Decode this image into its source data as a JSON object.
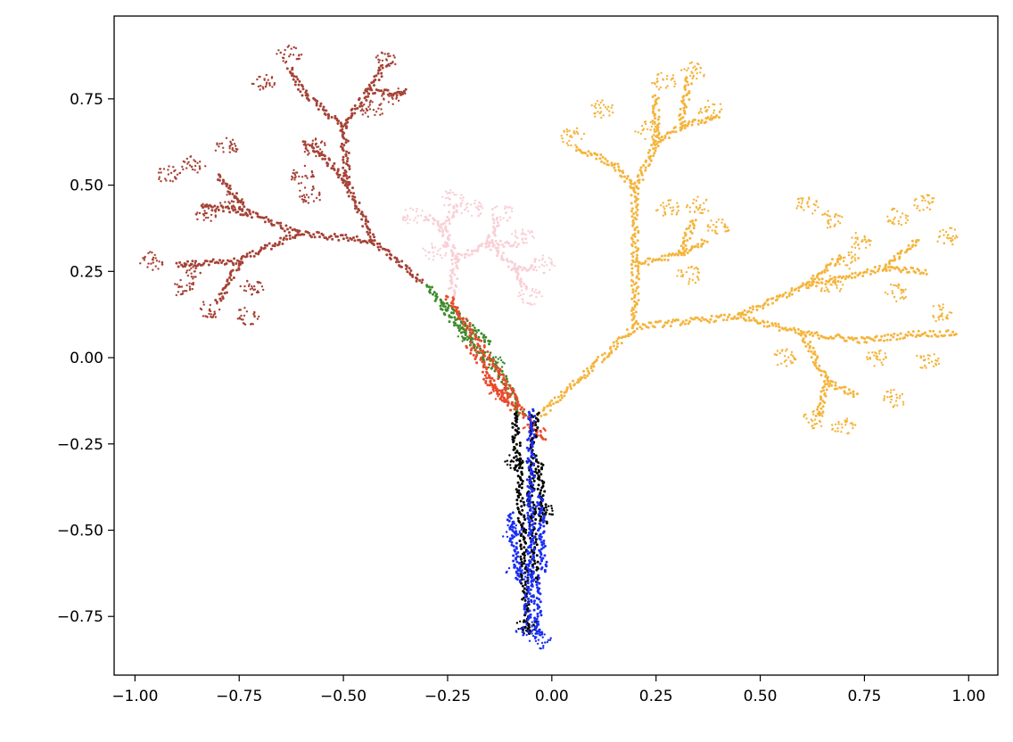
{
  "chart_data": {
    "type": "scatter",
    "title": "",
    "xlabel": "",
    "ylabel": "",
    "xlim": [
      -1.05,
      1.07
    ],
    "ylim": [
      -0.92,
      0.99
    ],
    "legend": "none",
    "grid": false,
    "xticks": [
      {
        "value": -1.0,
        "label": "−1.00"
      },
      {
        "value": -0.75,
        "label": "−0.75"
      },
      {
        "value": -0.5,
        "label": "−0.50"
      },
      {
        "value": -0.25,
        "label": "−0.25"
      },
      {
        "value": 0.0,
        "label": "0.00"
      },
      {
        "value": 0.25,
        "label": "0.25"
      },
      {
        "value": 0.5,
        "label": "0.50"
      },
      {
        "value": 0.75,
        "label": "0.75"
      },
      {
        "value": 1.0,
        "label": "1.00"
      }
    ],
    "yticks": [
      {
        "value": -0.75,
        "label": "−0.75"
      },
      {
        "value": -0.5,
        "label": "−0.50"
      },
      {
        "value": -0.25,
        "label": "−0.25"
      },
      {
        "value": 0.0,
        "label": "0.00"
      },
      {
        "value": 0.25,
        "label": "0.25"
      },
      {
        "value": 0.5,
        "label": "0.50"
      },
      {
        "value": 0.75,
        "label": "0.75"
      }
    ],
    "series": [
      {
        "color": "#a64236",
        "segments": [
          [
            [
              -0.31,
              0.22
            ],
            [
              -0.43,
              0.34
            ]
          ],
          [
            [
              -0.43,
              0.34
            ],
            [
              -0.49,
              0.5
            ]
          ],
          [
            [
              -0.49,
              0.5
            ],
            [
              -0.5,
              0.67
            ]
          ],
          [
            [
              -0.5,
              0.67
            ],
            [
              -0.59,
              0.76
            ]
          ],
          [
            [
              -0.59,
              0.76
            ],
            [
              -0.63,
              0.84
            ]
          ],
          [
            [
              -0.5,
              0.67
            ],
            [
              -0.44,
              0.77
            ]
          ],
          [
            [
              -0.44,
              0.77
            ],
            [
              -0.4,
              0.85
            ]
          ],
          [
            [
              -0.44,
              0.77
            ],
            [
              -0.35,
              0.77
            ]
          ],
          [
            [
              -0.49,
              0.5
            ],
            [
              -0.55,
              0.59
            ]
          ],
          [
            [
              -0.55,
              0.59
            ],
            [
              -0.6,
              0.62
            ]
          ],
          [
            [
              -0.43,
              0.34
            ],
            [
              -0.61,
              0.36
            ]
          ],
          [
            [
              -0.61,
              0.36
            ],
            [
              -0.73,
              0.42
            ]
          ],
          [
            [
              -0.73,
              0.42
            ],
            [
              -0.8,
              0.53
            ]
          ],
          [
            [
              -0.73,
              0.42
            ],
            [
              -0.84,
              0.44
            ]
          ],
          [
            [
              -0.61,
              0.36
            ],
            [
              -0.75,
              0.28
            ]
          ],
          [
            [
              -0.75,
              0.28
            ],
            [
              -0.9,
              0.27
            ]
          ],
          [
            [
              -0.75,
              0.28
            ],
            [
              -0.8,
              0.16
            ]
          ]
        ],
        "blobs": [
          [
            -0.63,
            0.88
          ],
          [
            -0.69,
            0.8
          ],
          [
            -0.43,
            0.72
          ],
          [
            -0.38,
            0.76
          ],
          [
            -0.4,
            0.86
          ],
          [
            -0.57,
            0.61
          ],
          [
            -0.6,
            0.53
          ],
          [
            -0.58,
            0.47
          ],
          [
            -0.92,
            0.53
          ],
          [
            -0.86,
            0.56
          ],
          [
            -0.78,
            0.61
          ],
          [
            -0.83,
            0.42
          ],
          [
            -0.77,
            0.45
          ],
          [
            -0.96,
            0.28
          ],
          [
            -0.88,
            0.2
          ],
          [
            -0.82,
            0.14
          ],
          [
            -0.73,
            0.12
          ],
          [
            -0.86,
            0.25
          ],
          [
            -0.72,
            0.2
          ]
        ]
      },
      {
        "color": "#f8d0d6",
        "segments": [
          [
            [
              -0.24,
              0.18
            ],
            [
              -0.23,
              0.29
            ]
          ],
          [
            [
              -0.23,
              0.29
            ],
            [
              -0.26,
              0.37
            ]
          ],
          [
            [
              -0.26,
              0.37
            ],
            [
              -0.3,
              0.41
            ]
          ],
          [
            [
              -0.26,
              0.37
            ],
            [
              -0.23,
              0.44
            ]
          ],
          [
            [
              -0.23,
              0.29
            ],
            [
              -0.15,
              0.33
            ]
          ],
          [
            [
              -0.15,
              0.33
            ],
            [
              -0.13,
              0.4
            ]
          ],
          [
            [
              -0.15,
              0.33
            ],
            [
              -0.08,
              0.33
            ]
          ],
          [
            [
              -0.15,
              0.33
            ],
            [
              -0.09,
              0.26
            ]
          ],
          [
            [
              -0.09,
              0.26
            ],
            [
              -0.04,
              0.26
            ]
          ],
          [
            [
              -0.09,
              0.26
            ],
            [
              -0.06,
              0.2
            ]
          ]
        ],
        "blobs": [
          [
            -0.33,
            0.41
          ],
          [
            -0.24,
            0.46
          ],
          [
            -0.19,
            0.43
          ],
          [
            -0.12,
            0.42
          ],
          [
            -0.07,
            0.35
          ],
          [
            -0.02,
            0.27
          ],
          [
            -0.05,
            0.18
          ],
          [
            -0.28,
            0.31
          ]
        ]
      },
      {
        "color": "#f5b43c",
        "segments": [
          [
            [
              -0.03,
              -0.17
            ],
            [
              0.13,
              0.01
            ]
          ],
          [
            [
              0.13,
              0.01
            ],
            [
              0.2,
              0.09
            ]
          ],
          [
            [
              0.2,
              0.09
            ],
            [
              0.2,
              0.27
            ]
          ],
          [
            [
              0.2,
              0.27
            ],
            [
              0.2,
              0.49
            ]
          ],
          [
            [
              0.2,
              0.49
            ],
            [
              0.15,
              0.56
            ]
          ],
          [
            [
              0.15,
              0.56
            ],
            [
              0.06,
              0.61
            ]
          ],
          [
            [
              0.2,
              0.49
            ],
            [
              0.25,
              0.62
            ]
          ],
          [
            [
              0.25,
              0.62
            ],
            [
              0.25,
              0.76
            ]
          ],
          [
            [
              0.25,
              0.62
            ],
            [
              0.31,
              0.67
            ]
          ],
          [
            [
              0.31,
              0.67
            ],
            [
              0.33,
              0.81
            ]
          ],
          [
            [
              0.31,
              0.67
            ],
            [
              0.4,
              0.7
            ]
          ],
          [
            [
              0.2,
              0.27
            ],
            [
              0.31,
              0.3
            ]
          ],
          [
            [
              0.31,
              0.3
            ],
            [
              0.34,
              0.4
            ]
          ],
          [
            [
              0.31,
              0.3
            ],
            [
              0.37,
              0.34
            ]
          ],
          [
            [
              0.2,
              0.09
            ],
            [
              0.45,
              0.12
            ]
          ],
          [
            [
              0.45,
              0.12
            ],
            [
              0.61,
              0.21
            ]
          ],
          [
            [
              0.61,
              0.21
            ],
            [
              0.69,
              0.29
            ]
          ],
          [
            [
              0.61,
              0.21
            ],
            [
              0.8,
              0.26
            ]
          ],
          [
            [
              0.8,
              0.26
            ],
            [
              0.88,
              0.34
            ]
          ],
          [
            [
              0.8,
              0.26
            ],
            [
              0.9,
              0.25
            ]
          ],
          [
            [
              0.45,
              0.12
            ],
            [
              0.6,
              0.07
            ]
          ],
          [
            [
              0.6,
              0.07
            ],
            [
              0.75,
              0.05
            ]
          ],
          [
            [
              0.75,
              0.05
            ],
            [
              0.88,
              0.07
            ]
          ],
          [
            [
              0.88,
              0.07
            ],
            [
              0.97,
              0.07
            ]
          ],
          [
            [
              0.6,
              0.07
            ],
            [
              0.66,
              -0.07
            ]
          ],
          [
            [
              0.66,
              -0.07
            ],
            [
              0.73,
              -0.11
            ]
          ],
          [
            [
              0.66,
              -0.07
            ],
            [
              0.64,
              -0.17
            ]
          ]
        ],
        "blobs": [
          [
            0.05,
            0.64
          ],
          [
            0.12,
            0.72
          ],
          [
            0.27,
            0.8
          ],
          [
            0.34,
            0.83
          ],
          [
            0.38,
            0.72
          ],
          [
            0.23,
            0.66
          ],
          [
            0.28,
            0.43
          ],
          [
            0.35,
            0.44
          ],
          [
            0.4,
            0.38
          ],
          [
            0.33,
            0.24
          ],
          [
            0.61,
            0.44
          ],
          [
            0.67,
            0.4
          ],
          [
            0.71,
            0.28
          ],
          [
            0.67,
            0.21
          ],
          [
            0.74,
            0.34
          ],
          [
            0.83,
            0.41
          ],
          [
            0.89,
            0.45
          ],
          [
            0.95,
            0.35
          ],
          [
            0.83,
            0.19
          ],
          [
            0.93,
            0.13
          ],
          [
            0.9,
            -0.01
          ],
          [
            0.78,
            0.0
          ],
          [
            0.63,
            -0.18
          ],
          [
            0.7,
            -0.2
          ],
          [
            0.82,
            -0.12
          ],
          [
            0.56,
            0.0
          ]
        ]
      },
      {
        "color": "#3d8a2a",
        "segments": [
          [
            [
              -0.3,
              0.21
            ],
            [
              -0.22,
              0.08
            ]
          ],
          [
            [
              -0.22,
              0.08
            ],
            [
              -0.12,
              -0.05
            ]
          ],
          [
            [
              -0.26,
              0.16
            ],
            [
              -0.15,
              0.04
            ]
          ],
          [
            [
              -0.12,
              -0.05
            ],
            [
              -0.07,
              -0.17
            ]
          ]
        ],
        "blobs": [
          [
            -0.2,
            0.07
          ],
          [
            -0.14,
            -0.01
          ]
        ]
      },
      {
        "color": "#e84a2a",
        "segments": [
          [
            [
              -0.25,
              0.18
            ],
            [
              -0.13,
              -0.04
            ]
          ],
          [
            [
              -0.13,
              -0.04
            ],
            [
              -0.08,
              -0.14
            ]
          ],
          [
            [
              -0.2,
              0.04
            ],
            [
              -0.11,
              -0.13
            ]
          ],
          [
            [
              -0.08,
              -0.14
            ],
            [
              -0.02,
              -0.24
            ]
          ],
          [
            [
              -0.16,
              -0.06
            ],
            [
              -0.09,
              -0.15
            ]
          ]
        ],
        "blobs": [
          [
            -0.12,
            -0.1
          ],
          [
            -0.04,
            -0.21
          ]
        ]
      },
      {
        "color": "#000000",
        "segments": [
          [
            [
              -0.09,
              -0.16
            ],
            [
              -0.08,
              -0.32
            ]
          ],
          [
            [
              -0.08,
              -0.32
            ],
            [
              -0.07,
              -0.5
            ]
          ],
          [
            [
              -0.07,
              -0.5
            ],
            [
              -0.06,
              -0.8
            ]
          ],
          [
            [
              -0.04,
              -0.16
            ],
            [
              -0.05,
              -0.4
            ]
          ],
          [
            [
              -0.05,
              -0.4
            ],
            [
              -0.04,
              -0.65
            ]
          ],
          [
            [
              -0.03,
              -0.3
            ],
            [
              -0.02,
              -0.48
            ]
          ]
        ],
        "blobs": [
          [
            -0.09,
            -0.3
          ],
          [
            -0.02,
            -0.45
          ],
          [
            -0.06,
            -0.78
          ]
        ]
      },
      {
        "color": "#1a2ef5",
        "segments": [
          [
            [
              -0.05,
              -0.15
            ],
            [
              -0.05,
              -0.55
            ]
          ],
          [
            [
              -0.05,
              -0.55
            ],
            [
              -0.06,
              -0.76
            ]
          ],
          [
            [
              -0.1,
              -0.45
            ],
            [
              -0.08,
              -0.65
            ]
          ],
          [
            [
              -0.03,
              -0.4
            ],
            [
              -0.02,
              -0.62
            ]
          ],
          [
            [
              -0.04,
              -0.62
            ],
            [
              -0.03,
              -0.8
            ]
          ]
        ],
        "blobs": [
          [
            -0.1,
            -0.5
          ],
          [
            -0.08,
            -0.62
          ],
          [
            -0.03,
            -0.82
          ],
          [
            -0.06,
            -0.79
          ]
        ]
      }
    ]
  }
}
